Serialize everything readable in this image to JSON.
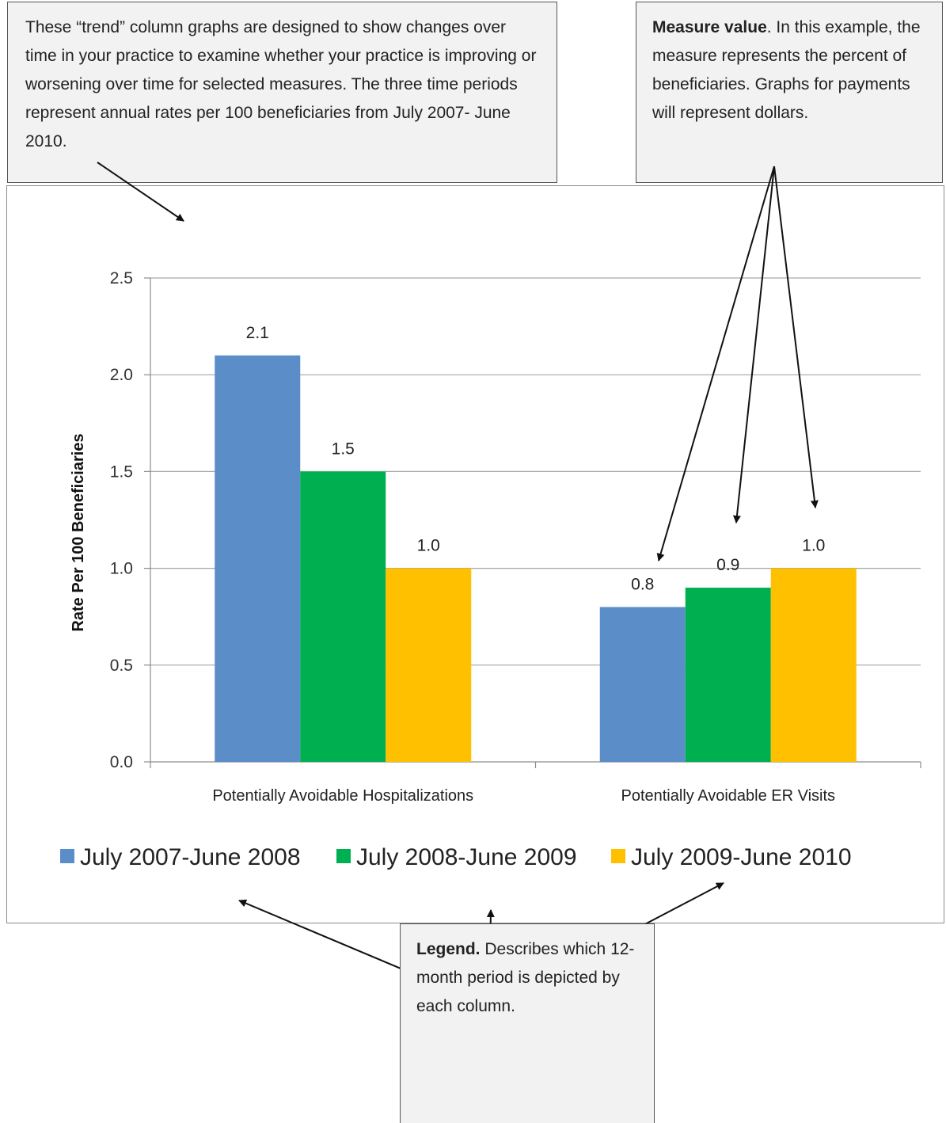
{
  "callouts": {
    "trend": {
      "text": "These “trend” column graphs are designed to show changes over time in your practice to examine whether your practice is improving or worsening over time for selected measures. The three time periods represent annual rates per 100 beneficiaries from July 2007- June 2010."
    },
    "measure": {
      "bold": "Measure value",
      "text": ". In this example, the measure represents the percent of beneficiaries. Graphs for payments will represent dollars."
    },
    "legend": {
      "bold": "Legend.",
      "text": " Describes which 12-month period is depicted by each column."
    }
  },
  "chart_data": {
    "type": "bar",
    "title": "",
    "xlabel": "",
    "ylabel": "Rate Per 100 Beneficiaries",
    "ylim": [
      0,
      2.5
    ],
    "yticks": [
      "0.0",
      "0.5",
      "1.0",
      "1.5",
      "2.0",
      "2.5"
    ],
    "grid": true,
    "legend_position": "bottom",
    "categories": [
      "Potentially Avoidable Hospitalizations",
      "Potentially Avoidable ER Visits"
    ],
    "series": [
      {
        "name": "July 2007-June 2008",
        "values": [
          2.1,
          0.8
        ],
        "labels": [
          "2.1",
          "0.8"
        ],
        "color": "#5b8ec9"
      },
      {
        "name": "July 2008-June 2009",
        "values": [
          1.5,
          0.9
        ],
        "labels": [
          "1.5",
          "0.9"
        ],
        "color": "#00b050"
      },
      {
        "name": "July 2009-June 2010",
        "values": [
          1.0,
          1.0
        ],
        "labels": [
          "1.0",
          "1.0"
        ],
        "color": "#ffc000"
      }
    ]
  }
}
